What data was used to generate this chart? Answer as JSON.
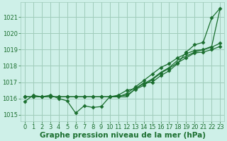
{
  "xlabel": "Graphe pression niveau de la mer (hPa)",
  "bg_color": "#cef0e8",
  "plot_bg_color": "#cef0e8",
  "grid_color": "#a0ccbb",
  "line_color": "#1a6e2e",
  "ylim": [
    1014.6,
    1021.9
  ],
  "xlim": [
    -0.5,
    23.5
  ],
  "yticks": [
    1015,
    1016,
    1017,
    1018,
    1019,
    1020,
    1021
  ],
  "xticks": [
    0,
    1,
    2,
    3,
    4,
    5,
    6,
    7,
    8,
    9,
    10,
    11,
    12,
    13,
    14,
    15,
    16,
    17,
    18,
    19,
    20,
    21,
    22,
    23
  ],
  "series": [
    {
      "data": [
        1015.8,
        1016.2,
        1016.1,
        1016.2,
        1016.0,
        1015.85,
        1015.1,
        1015.55,
        1015.45,
        1015.5,
        1016.1,
        1016.2,
        1016.5,
        1016.6,
        1016.95,
        1017.0,
        1017.4,
        1017.7,
        1018.15,
        1018.85,
        1019.3,
        1019.45,
        1020.95,
        1021.55
      ],
      "marker": "D",
      "markersize": 2.5,
      "linewidth": 0.9,
      "zorder": 4
    },
    {
      "data": [
        1016.1,
        1016.1,
        1016.1,
        1016.1,
        1016.1,
        1016.1,
        1016.1,
        1016.1,
        1016.1,
        1016.1,
        1016.1,
        1016.1,
        1016.1,
        1016.6,
        1016.9,
        1017.2,
        1017.6,
        1017.9,
        1018.35,
        1018.6,
        1018.85,
        1019.0,
        1019.2,
        1021.55
      ],
      "marker": "None",
      "markersize": 0,
      "linewidth": 0.9,
      "zorder": 2
    },
    {
      "data": [
        1016.1,
        1016.1,
        1016.1,
        1016.1,
        1016.1,
        1016.1,
        1016.1,
        1016.1,
        1016.1,
        1016.1,
        1016.1,
        1016.15,
        1016.2,
        1016.55,
        1016.8,
        1017.15,
        1017.55,
        1017.85,
        1018.2,
        1018.5,
        1018.8,
        1018.85,
        1019.0,
        1019.2
      ],
      "marker": "D",
      "markersize": 2.5,
      "linewidth": 0.9,
      "zorder": 3
    },
    {
      "data": [
        1016.1,
        1016.1,
        1016.1,
        1016.1,
        1016.1,
        1016.1,
        1016.1,
        1016.1,
        1016.1,
        1016.1,
        1016.1,
        1016.1,
        1016.3,
        1016.7,
        1017.1,
        1017.5,
        1017.9,
        1018.15,
        1018.5,
        1018.75,
        1018.95,
        1019.0,
        1019.15,
        1019.4
      ],
      "marker": "D",
      "markersize": 2.5,
      "linewidth": 0.9,
      "zorder": 3
    }
  ],
  "font_color": "#1a6e2e",
  "tick_fontsize": 6.0,
  "xlabel_fontsize": 7.5
}
